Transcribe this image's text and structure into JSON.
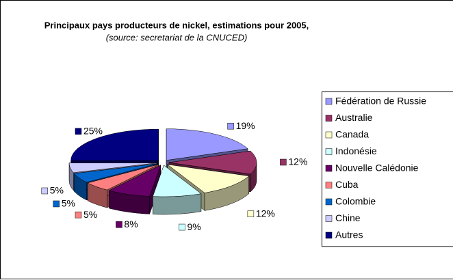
{
  "chart_data": {
    "type": "pie3d",
    "title": "Principaux pays producteurs de nickel, estimations pour 2005,",
    "subtitle": "(source: secretariat de la CNUCED)",
    "categories": [
      "Fédération de Russie",
      "Australie",
      "Canada",
      "Indonésie",
      "Nouvelle Calédonie",
      "Cuba",
      "Colombie",
      "Chine",
      "Autres"
    ],
    "values": [
      19,
      12,
      12,
      9,
      8,
      5,
      5,
      5,
      25
    ],
    "value_labels": [
      "19%",
      "12%",
      "12%",
      "9%",
      "8%",
      "5%",
      "5%",
      "5%",
      "25%"
    ],
    "colors": [
      "#9999FF",
      "#993366",
      "#FFFFCC",
      "#CCFFFF",
      "#660066",
      "#FF8080",
      "#0066CC",
      "#CCCCFF",
      "#000080"
    ],
    "legend": "right"
  }
}
